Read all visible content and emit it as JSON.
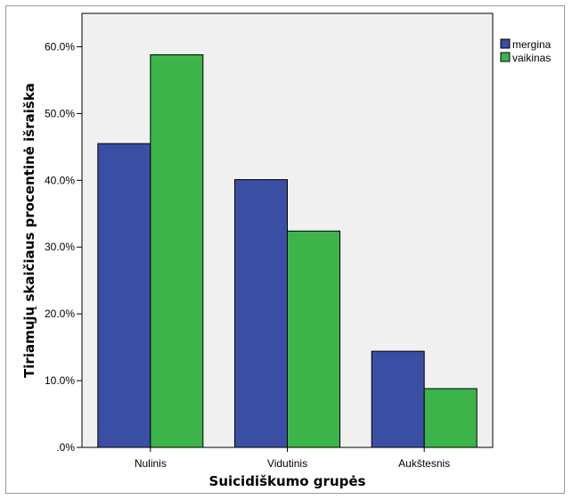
{
  "chart_data": {
    "type": "bar",
    "title": "",
    "xlabel": "Suicidiškumo grupės",
    "ylabel": "Tiriamųjų skaičiaus procentinė išraiška",
    "categories": [
      "Nulinis",
      "Vidutinis",
      "Aukštesnis"
    ],
    "series": [
      {
        "name": "mergina",
        "values": [
          45.5,
          40.1,
          14.4
        ],
        "color": "#3a4fa3"
      },
      {
        "name": "vaikinas",
        "values": [
          58.8,
          32.4,
          8.8
        ],
        "color": "#3cb44a"
      }
    ],
    "ylim": [
      0,
      65
    ],
    "yticks": [
      0,
      10,
      20,
      30,
      40,
      50,
      60
    ],
    "ytick_labels": [
      ".0%",
      "10.0%",
      "20.0%",
      "30.0%",
      "40.0%",
      "50.0%",
      "60.0%"
    ],
    "plot_background": "#f0f0f0",
    "grid": false,
    "legend_position": "right"
  }
}
